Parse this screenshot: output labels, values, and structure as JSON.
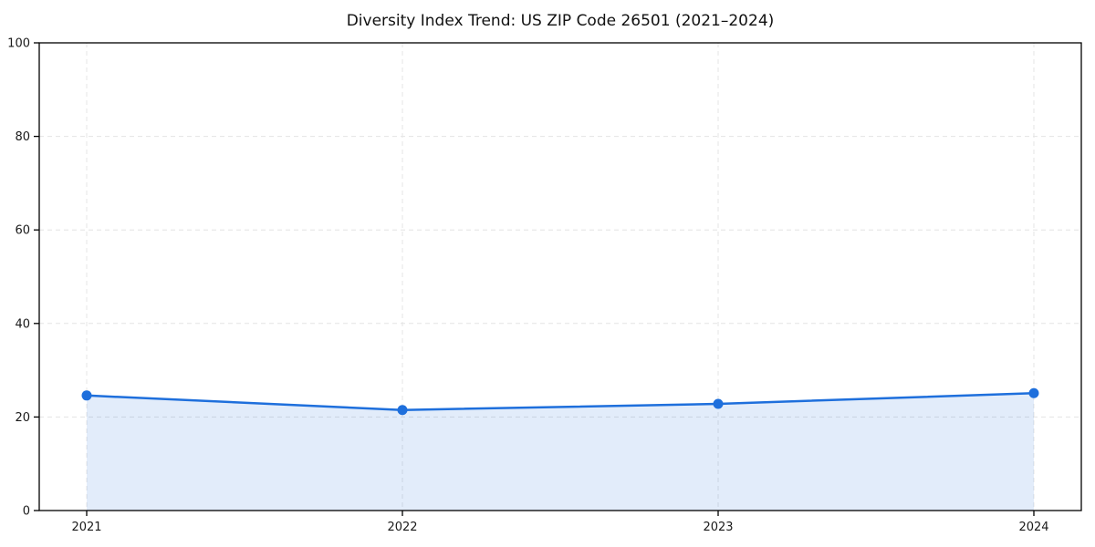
{
  "chart_data": {
    "type": "line",
    "title": "Diversity Index Trend: US ZIP Code 26501 (2021–2024)",
    "categories": [
      "2021",
      "2022",
      "2023",
      "2024"
    ],
    "series": [
      {
        "name": "Diversity Index",
        "values": [
          24.6,
          21.5,
          22.8,
          25.1
        ]
      }
    ],
    "xlabel": "",
    "ylabel": "",
    "ylim": [
      0,
      100
    ],
    "yticks": [
      0,
      20,
      40,
      60,
      80,
      100
    ],
    "grid": "dashed (horizontal at y-ticks, vertical at each year)",
    "legend": "none",
    "area_fill": "under line down to 0, spanning first to last data point",
    "marker": "filled circle",
    "colors": {
      "line": "#1e6fdc",
      "marker": "#1e6fdc",
      "fill": "#1e6fdc",
      "fill_opacity": 0.13,
      "grid": "#e4e4e4",
      "axis": "#000000",
      "tick_text": "#1a1a1a",
      "title_text": "#111111",
      "background": "#ffffff"
    }
  }
}
